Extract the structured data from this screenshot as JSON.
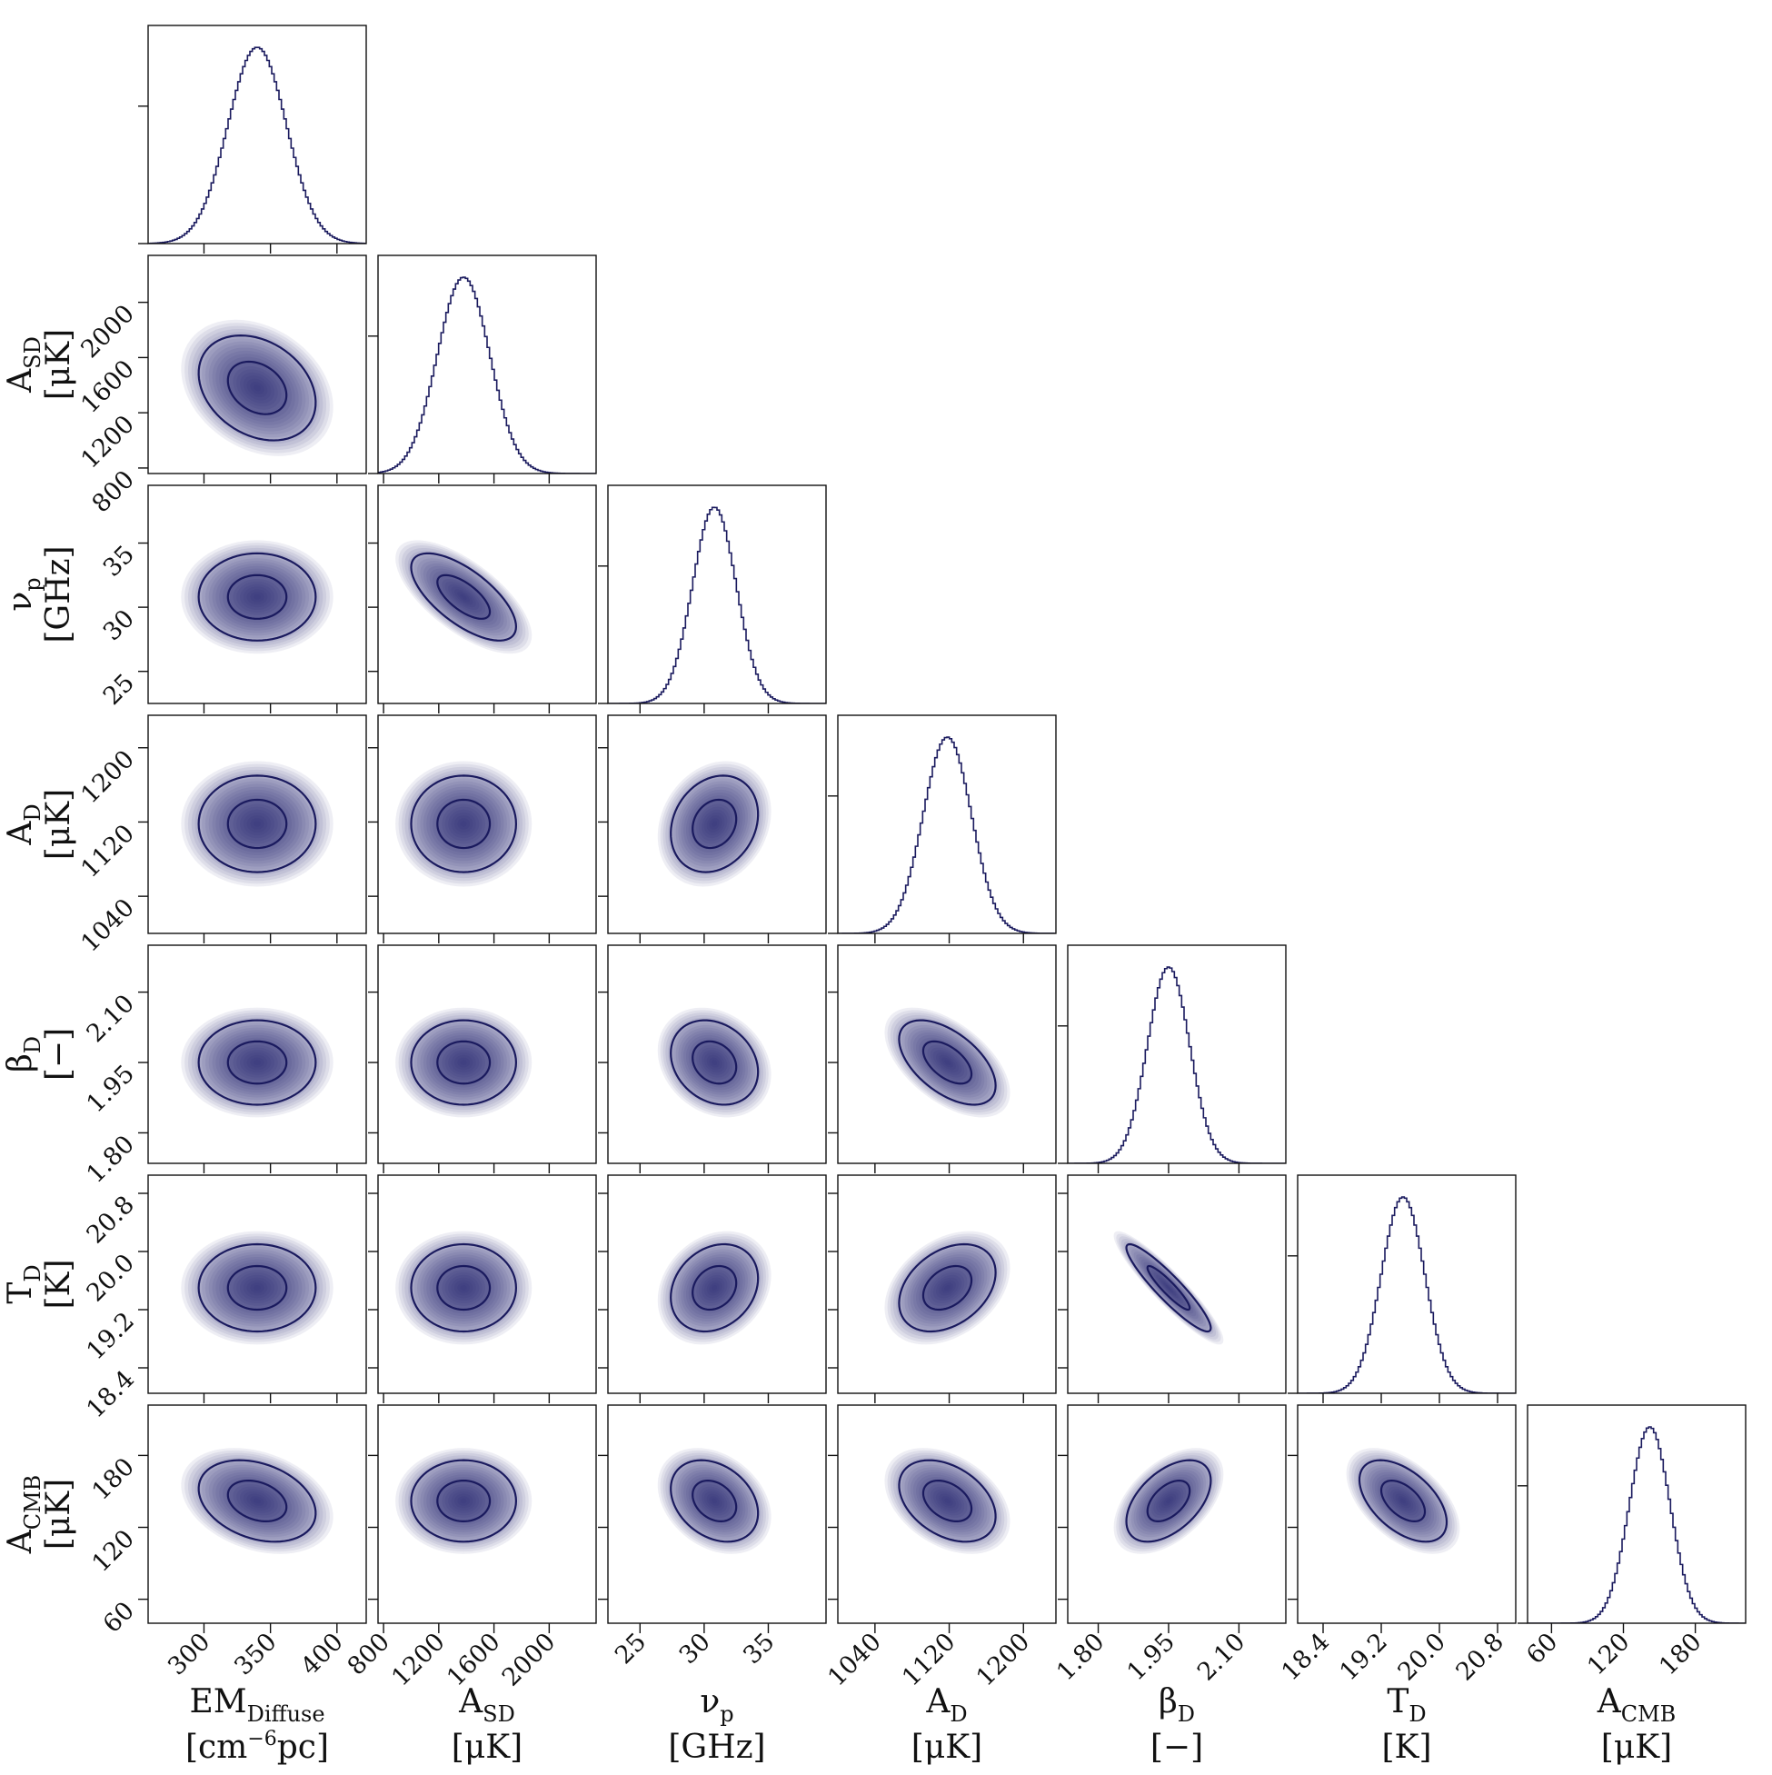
{
  "chart_data": {
    "type": "corner",
    "description_free": true,
    "params": [
      {
        "id": "em",
        "sym": "EM",
        "sub": "Diffuse",
        "unit": "[cm",
        "unit_sup": "−6",
        "unit_tail": "pc]",
        "mean": 340,
        "sigma": 22,
        "range": [
          258,
          422
        ],
        "ticks": [
          300,
          350,
          400
        ],
        "tick_labels": [
          "300",
          "350",
          "400"
        ]
      },
      {
        "id": "asd",
        "sym": "A",
        "sub": "SD",
        "unit": "[μK]",
        "unit_sup": "",
        "unit_tail": "",
        "mean": 1380,
        "sigma": 190,
        "range": [
          760,
          2340
        ],
        "ticks": [
          800,
          1200,
          1600,
          2000
        ],
        "tick_labels": [
          "800",
          "1200",
          "1600",
          "2000"
        ]
      },
      {
        "id": "nup",
        "sym": "ν",
        "sub": "p",
        "unit": "[GHz]",
        "unit_sup": "",
        "unit_tail": "",
        "mean": 30.8,
        "sigma": 1.7,
        "range": [
          22.5,
          39.5
        ],
        "ticks": [
          25,
          30,
          35
        ],
        "tick_labels": [
          "25",
          "30",
          "35"
        ]
      },
      {
        "id": "ad",
        "sym": "A",
        "sub": "D",
        "unit": "[μK]",
        "unit_sup": "",
        "unit_tail": "",
        "mean": 1118,
        "sigma": 26,
        "range": [
          1000,
          1235
        ],
        "ticks": [
          1040,
          1120,
          1200
        ],
        "tick_labels": [
          "1040",
          "1120",
          "1200"
        ]
      },
      {
        "id": "betad",
        "sym": "β",
        "sub": "D",
        "unit": "[−]",
        "unit_sup": "",
        "unit_tail": "",
        "mean": 1.95,
        "sigma": 0.045,
        "range": [
          1.735,
          2.2
        ],
        "ticks": [
          1.8,
          1.95,
          2.1
        ],
        "tick_labels": [
          "1.80",
          "1.95",
          "2.10"
        ]
      },
      {
        "id": "td",
        "sym": "T",
        "sub": "D",
        "unit": "[K]",
        "unit_sup": "",
        "unit_tail": "",
        "mean": 19.5,
        "sigma": 0.3,
        "range": [
          18.05,
          21.05
        ],
        "ticks": [
          18.4,
          19.2,
          20.0,
          20.8
        ],
        "tick_labels": [
          "18.4",
          "19.2",
          "20.0",
          "20.8"
        ]
      },
      {
        "id": "acmb",
        "sym": "A",
        "sub": "CMB",
        "unit": "[μK]",
        "unit_sup": "",
        "unit_tail": "",
        "mean": 142,
        "sigma": 17,
        "range": [
          40,
          222
        ],
        "ticks": [
          60,
          120,
          180
        ],
        "tick_labels": [
          "60",
          "120",
          "180"
        ]
      }
    ],
    "correlations": [
      {
        "i": 1,
        "j": 0,
        "rho": -0.28
      },
      {
        "i": 2,
        "j": 0,
        "rho": 0.0
      },
      {
        "i": 2,
        "j": 1,
        "rho": -0.68
      },
      {
        "i": 3,
        "j": 0,
        "rho": 0.0
      },
      {
        "i": 3,
        "j": 1,
        "rho": 0.0
      },
      {
        "i": 3,
        "j": 2,
        "rho": 0.2
      },
      {
        "i": 4,
        "j": 0,
        "rho": 0.0
      },
      {
        "i": 4,
        "j": 1,
        "rho": 0.0
      },
      {
        "i": 4,
        "j": 2,
        "rho": -0.22
      },
      {
        "i": 4,
        "j": 3,
        "rho": -0.55
      },
      {
        "i": 5,
        "j": 0,
        "rho": 0.0
      },
      {
        "i": 5,
        "j": 1,
        "rho": 0.0
      },
      {
        "i": 5,
        "j": 2,
        "rho": 0.22
      },
      {
        "i": 5,
        "j": 3,
        "rho": 0.35
      },
      {
        "i": 5,
        "j": 4,
        "rho": -0.92
      },
      {
        "i": 6,
        "j": 0,
        "rho": -0.3
      },
      {
        "i": 6,
        "j": 1,
        "rho": 0.0
      },
      {
        "i": 6,
        "j": 2,
        "rho": -0.3
      },
      {
        "i": 6,
        "j": 3,
        "rho": -0.38
      },
      {
        "i": 6,
        "j": 4,
        "rho": 0.5
      },
      {
        "i": 6,
        "j": 5,
        "rho": -0.52
      }
    ],
    "contour_levels_sigma": [
      1,
      2
    ],
    "line_color": "#1a1a5e",
    "fill_color": "#1a1a6e",
    "grid": false,
    "legend": "none"
  }
}
